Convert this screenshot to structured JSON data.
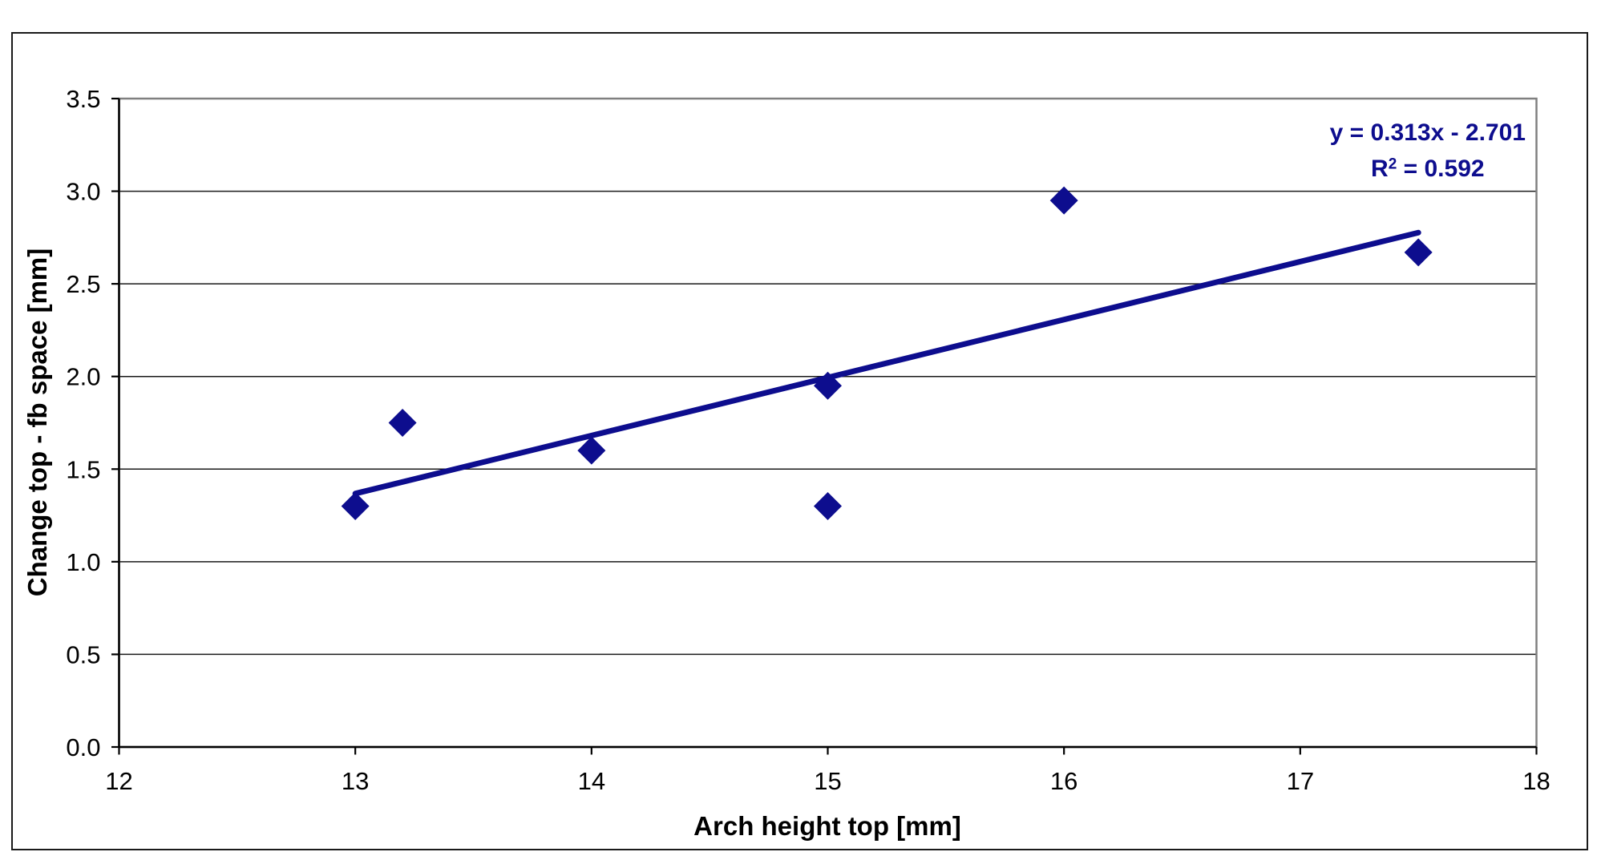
{
  "chart_data": {
    "type": "scatter",
    "xlabel": "Arch height top [mm]",
    "ylabel": "Change top - fb space [mm]",
    "xlim": [
      12,
      18
    ],
    "ylim": [
      0,
      3.5
    ],
    "xticks": [
      12,
      13,
      14,
      15,
      16,
      17,
      18
    ],
    "yticks": [
      0,
      0.5,
      1,
      1.5,
      2,
      2.5,
      3,
      3.5
    ],
    "grid": true,
    "legend_position": "none",
    "series": [
      {
        "marker": "diamond",
        "points": [
          {
            "x": 13,
            "y": 1.3
          },
          {
            "x": 13.2,
            "y": 1.75
          },
          {
            "x": 14,
            "y": 1.6
          },
          {
            "x": 15,
            "y": 1.95
          },
          {
            "x": 15,
            "y": 1.3
          },
          {
            "x": 16,
            "y": 2.95
          },
          {
            "x": 17.5,
            "y": 2.67
          }
        ]
      }
    ],
    "trendline": {
      "type": "linear",
      "slope": 0.313,
      "intercept": -2.701,
      "x_start": 13,
      "x_end": 17.5
    },
    "annotations": {
      "equation": "y = 0.313x - 2.701",
      "r_squared_base": "R",
      "r_squared_sup": "2",
      "r_squared_rest": " = 0.592"
    },
    "colors": {
      "series": "#0d0d8e",
      "trendline": "#0d0d8e",
      "annotation_text": "#0d0d8e",
      "axis": "#000000",
      "gridline": "#1a1a1a",
      "plot_border": "#808080",
      "chart_border": "#1a1a1a",
      "background": "#ffffff"
    }
  }
}
